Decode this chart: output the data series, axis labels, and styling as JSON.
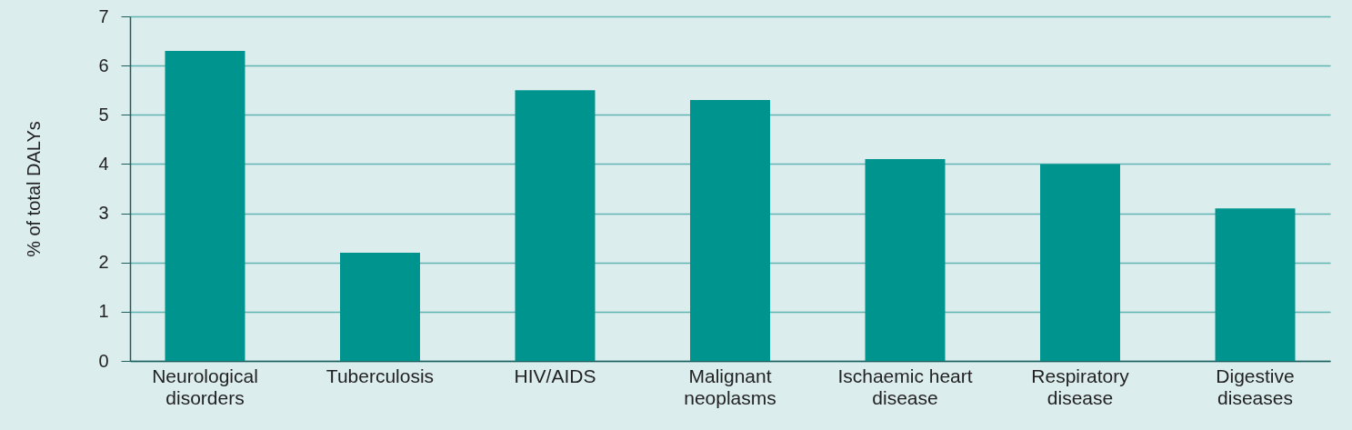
{
  "chart_data": {
    "type": "bar",
    "ylabel": "% of total DALYs",
    "categories": [
      "Neurological disorders",
      "Tuberculosis",
      "HIV/AIDS",
      "Malignant neoplasms",
      "Ischaemic heart disease",
      "Respiratory disease",
      "Digestive diseases"
    ],
    "values": [
      6.3,
      2.2,
      5.5,
      5.3,
      4.1,
      4.0,
      3.1
    ],
    "color": "#00948f",
    "ylim": [
      0,
      7
    ],
    "yticks": [
      0,
      1,
      2,
      3,
      4,
      5,
      6,
      7
    ],
    "grid": "y"
  }
}
